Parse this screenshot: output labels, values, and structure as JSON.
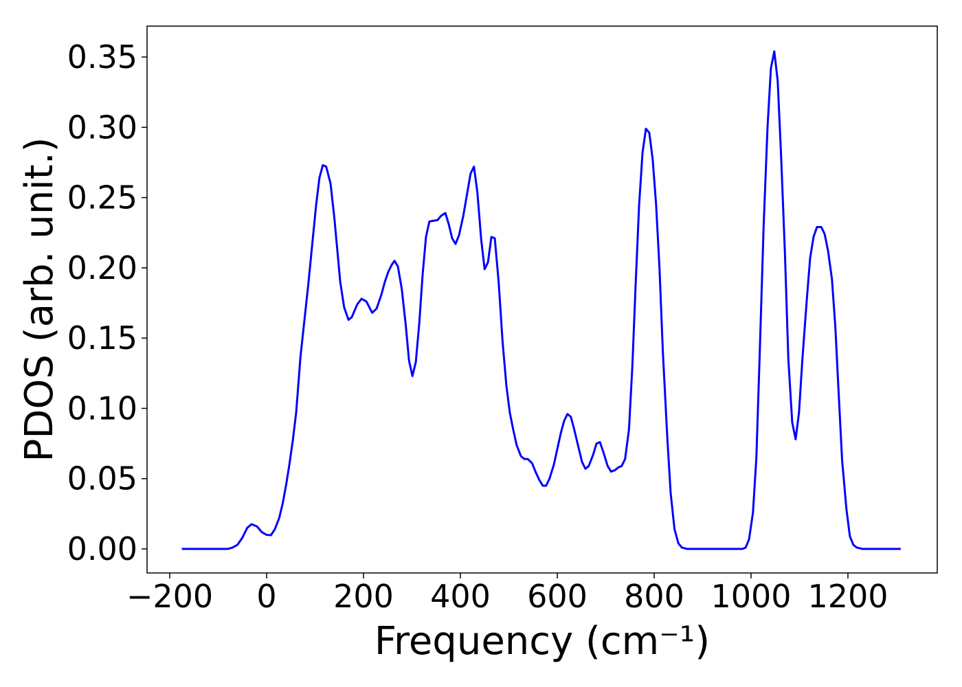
{
  "chart_data": {
    "type": "line",
    "xlabel": "Frequency (cm⁻¹)",
    "ylabel": "PDOS (arb. unit.)",
    "xlim": [
      -246.8,
      1384.4
    ],
    "ylim": [
      -0.0171,
      0.372
    ],
    "xticks": [
      {
        "value": -200,
        "label": "−200"
      },
      0,
      200,
      400,
      600,
      800,
      1000,
      1200
    ],
    "yticks": [
      {
        "value": 0,
        "label": "0.00"
      },
      {
        "value": 0.05,
        "label": "0.05"
      },
      {
        "value": 0.1,
        "label": "0.10"
      },
      {
        "value": 0.15,
        "label": "0.15"
      },
      {
        "value": 0.2,
        "label": "0.20"
      },
      {
        "value": 0.25,
        "label": "0.25"
      },
      {
        "value": 0.3,
        "label": "0.30"
      },
      {
        "value": 0.35,
        "label": "0.35"
      }
    ],
    "grid": false,
    "series": [
      {
        "color": "#0000ff",
        "x": [
          -175,
          -80,
          -70,
          -60,
          -50,
          -40,
          -31,
          -20,
          -10,
          0,
          9,
          17,
          26,
          33,
          40,
          47,
          54,
          61,
          70,
          86,
          102,
          109,
          116,
          123,
          132,
          140,
          152,
          160,
          169,
          176,
          187,
          196,
          206,
          218,
          227,
          237,
          244,
          251,
          258,
          264,
          271,
          279,
          287,
          294,
          301,
          308,
          315,
          322,
          329,
          336,
          353,
          360,
          369,
          376,
          383,
          390,
          397,
          406,
          414,
          421,
          428,
          435,
          443,
          450,
          457,
          464,
          471,
          479,
          487,
          495,
          502,
          509,
          516,
          525,
          532,
          539,
          548,
          555,
          563,
          570,
          577,
          584,
          593,
          600,
          607,
          614,
          621,
          628,
          635,
          644,
          651,
          658,
          665,
          674,
          681,
          688,
          695,
          704,
          711,
          719,
          726,
          733,
          740,
          748,
          755,
          762,
          769,
          776,
          783,
          790,
          797,
          804,
          811,
          818,
          827,
          834,
          842,
          850,
          857,
          868,
          982,
          989,
          996,
          1004,
          1011,
          1018,
          1026,
          1034,
          1041,
          1048,
          1055,
          1062,
          1070,
          1077,
          1085,
          1092,
          1099,
          1106,
          1115,
          1122,
          1129,
          1136,
          1145,
          1152,
          1159,
          1167,
          1174,
          1181,
          1188,
          1197,
          1204,
          1211,
          1218,
          1230,
          1309
        ],
        "values": [
          0,
          0,
          0.001,
          0.003,
          0.008,
          0.015,
          0.0176,
          0.016,
          0.012,
          0.01,
          0.0098,
          0.014,
          0.022,
          0.032,
          0.045,
          0.06,
          0.077,
          0.097,
          0.137,
          0.188,
          0.244,
          0.264,
          0.273,
          0.272,
          0.26,
          0.235,
          0.19,
          0.172,
          0.163,
          0.165,
          0.174,
          0.178,
          0.176,
          0.168,
          0.171,
          0.181,
          0.19,
          0.197,
          0.202,
          0.205,
          0.201,
          0.185,
          0.16,
          0.134,
          0.123,
          0.133,
          0.16,
          0.195,
          0.222,
          0.233,
          0.234,
          0.237,
          0.239,
          0.231,
          0.221,
          0.217,
          0.223,
          0.237,
          0.253,
          0.267,
          0.272,
          0.254,
          0.22,
          0.199,
          0.204,
          0.222,
          0.221,
          0.19,
          0.148,
          0.116,
          0.097,
          0.085,
          0.074,
          0.066,
          0.064,
          0.064,
          0.061,
          0.055,
          0.049,
          0.045,
          0.045,
          0.05,
          0.06,
          0.071,
          0.082,
          0.091,
          0.096,
          0.094,
          0.085,
          0.072,
          0.062,
          0.057,
          0.059,
          0.067,
          0.075,
          0.076,
          0.069,
          0.059,
          0.055,
          0.056,
          0.058,
          0.059,
          0.064,
          0.085,
          0.13,
          0.19,
          0.245,
          0.282,
          0.299,
          0.296,
          0.277,
          0.245,
          0.2,
          0.14,
          0.08,
          0.04,
          0.014,
          0.004,
          0.001,
          0,
          0,
          0.001,
          0.007,
          0.026,
          0.065,
          0.14,
          0.23,
          0.3,
          0.342,
          0.354,
          0.333,
          0.28,
          0.21,
          0.135,
          0.09,
          0.078,
          0.097,
          0.135,
          0.177,
          0.207,
          0.222,
          0.229,
          0.229,
          0.224,
          0.212,
          0.192,
          0.158,
          0.11,
          0.063,
          0.028,
          0.009,
          0.003,
          0.001,
          0,
          0
        ]
      }
    ]
  }
}
